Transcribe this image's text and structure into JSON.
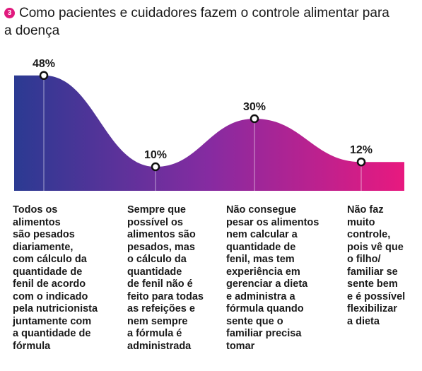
{
  "header": {
    "number": "3",
    "title": "Como pacientes e cuidadores fazem o controle alimentar para a doença"
  },
  "chart_data": {
    "type": "area",
    "categories": [
      "Todos os alimentos são pesados diariamente, com cálculo da quantidade de fenil de acordo com o indicado pela nutricionista juntamente com a quantidade de fórmula",
      "Sempre que possível os alimentos são pesados, mas o cálculo da quantidade de fenil não é feito para todas as refeições e nem sempre a fórmula é administrada",
      "Não consegue pesar os alimentos nem calcular a quantidade de fenil, mas tem experiência em gerenciar a dieta e administra a fórmula quando sente que o familiar precisa tomar",
      "Não faz muito controle, pois vê que o filho/ familiar se sente bem e é possível flexibilizar a dieta"
    ],
    "values": [
      48,
      10,
      30,
      12
    ],
    "value_labels": [
      "48%",
      "10%",
      "30%",
      "12%"
    ],
    "unit": "%",
    "ylim": [
      0,
      55
    ],
    "grid": false,
    "colors": {
      "start": "#2b3a92",
      "mid": "#862ba1",
      "end": "#e8197f"
    }
  },
  "descriptions": [
    "Todos os\nalimentos\nsão pesados\ndiariamente,\ncom cálculo da\nquantidade de\nfenil de acordo\ncom o indicado\npela nutricionista\njuntamente com\na quantidade de\nfórmula",
    "Sempre que\npossível os\nalimentos são\npesados, mas\no cálculo da\nquantidade\nde fenil não é\nfeito para todas\nas refeições e\nnem sempre\na fórmula é\nadministrada",
    "Não consegue\npesar os alimentos\nnem calcular a\nquantidade de\nfenil, mas tem\nexperiência em\ngerenciar a dieta\ne administra a\nfórmula quando\nsente que o\nfamiliar precisa\ntomar",
    "Não faz\nmuito\ncontrole,\npois vê que\no filho/\nfamiliar se\nsente bem\ne é possível\nflexibilizar\na dieta"
  ]
}
